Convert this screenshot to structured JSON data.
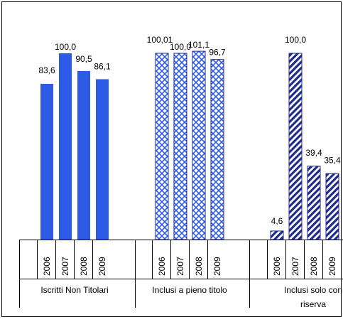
{
  "chart_data": {
    "type": "bar",
    "groups": [
      {
        "label": "Iscritti  Non Titolari",
        "pattern": "solid",
        "years": [
          "2006",
          "2007",
          "2008",
          "2009"
        ],
        "values": [
          83.6,
          100.0,
          90.5,
          86.1
        ],
        "value_labels": [
          "83,6",
          "100,0",
          "90,5",
          "86,1"
        ]
      },
      {
        "label": "Inclusi a pieno titolo",
        "pattern": "crosshatch",
        "years": [
          "2006",
          "2007",
          "2008",
          "2009"
        ],
        "values": [
          100.01,
          100.0,
          101.1,
          96.7
        ],
        "value_labels": [
          "100,01",
          "100,0",
          "101,1",
          "96,7"
        ]
      },
      {
        "label": "Inclusi solo con riserva",
        "label_lines": [
          "Inclusi solo con",
          "riserva"
        ],
        "pattern": "diagonal",
        "years": [
          "2006",
          "2007",
          "2008",
          "2009"
        ],
        "values": [
          4.6,
          100.0,
          39.4,
          35.4
        ],
        "value_labels": [
          "4,6",
          "100,0",
          "39,4",
          "35,4"
        ]
      }
    ],
    "ylim": [
      0,
      110
    ],
    "grid": false,
    "legend": "none",
    "colors": {
      "bar": "#2e5be6",
      "stripe": "#1f2a8a",
      "border": "#000000"
    }
  }
}
